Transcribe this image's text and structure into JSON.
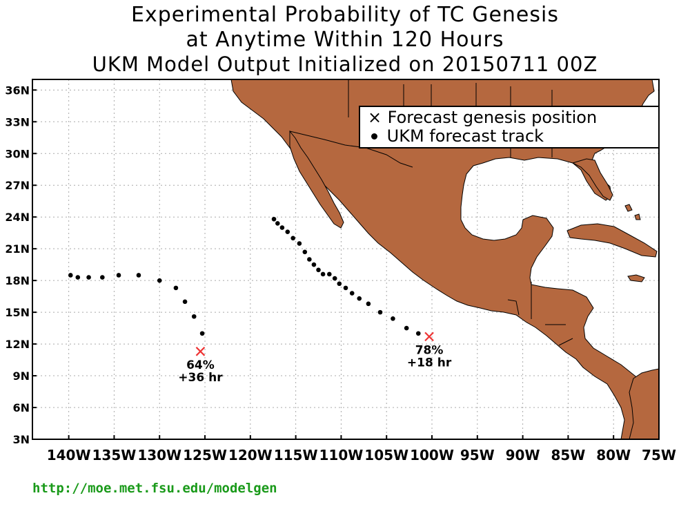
{
  "title": {
    "line1": "Experimental Probability of TC Genesis",
    "line2": "at Anytime Within 120 Hours",
    "line3": "UKM Model Output Initialized on 20150711 00Z"
  },
  "map": {
    "lon_range": [
      -144,
      -75
    ],
    "lat_range": [
      3,
      37
    ],
    "lat_ticks": [
      {
        "lat": 36,
        "label": "36N"
      },
      {
        "lat": 33,
        "label": "33N"
      },
      {
        "lat": 30,
        "label": "30N"
      },
      {
        "lat": 27,
        "label": "27N"
      },
      {
        "lat": 24,
        "label": "24N"
      },
      {
        "lat": 21,
        "label": "21N"
      },
      {
        "lat": 18,
        "label": "18N"
      },
      {
        "lat": 15,
        "label": "15N"
      },
      {
        "lat": 12,
        "label": "12N"
      },
      {
        "lat": 9,
        "label": "9N"
      },
      {
        "lat": 6,
        "label": "6N"
      },
      {
        "lat": 3,
        "label": "3N"
      }
    ],
    "lon_ticks": [
      {
        "lon": -140,
        "label": "140W"
      },
      {
        "lon": -135,
        "label": "135W"
      },
      {
        "lon": -130,
        "label": "130W"
      },
      {
        "lon": -125,
        "label": "125W"
      },
      {
        "lon": -120,
        "label": "120W"
      },
      {
        "lon": -115,
        "label": "115W"
      },
      {
        "lon": -110,
        "label": "110W"
      },
      {
        "lon": -105,
        "label": "105W"
      },
      {
        "lon": -100,
        "label": "100W"
      },
      {
        "lon": -95,
        "label": "95W"
      },
      {
        "lon": -90,
        "label": "90W"
      },
      {
        "lon": -85,
        "label": "85W"
      },
      {
        "lon": -80,
        "label": "80W"
      },
      {
        "lon": -75,
        "label": "75W"
      }
    ],
    "land_color": "#b5683f",
    "grid": true
  },
  "legend": {
    "genesis_symbol": "×",
    "genesis_label": "Forecast genesis position",
    "track_label": "UKM forecast track"
  },
  "systems": [
    {
      "genesis": {
        "lon": -125.5,
        "lat": 11.3
      },
      "probability": "64%",
      "lead": "+36 hr",
      "track": [
        [
          -125.3,
          13.0
        ],
        [
          -126.2,
          14.6
        ],
        [
          -127.2,
          16.0
        ],
        [
          -128.2,
          17.3
        ],
        [
          -130.0,
          18.0
        ],
        [
          -132.3,
          18.5
        ],
        [
          -134.5,
          18.5
        ],
        [
          -136.3,
          18.3
        ],
        [
          -137.8,
          18.3
        ],
        [
          -139.0,
          18.3
        ],
        [
          -139.8,
          18.5
        ]
      ]
    },
    {
      "genesis": {
        "lon": -100.3,
        "lat": 12.7
      },
      "probability": "78%",
      "lead": "+18 hr",
      "track": [
        [
          -101.5,
          13.0
        ],
        [
          -102.8,
          13.5
        ],
        [
          -104.3,
          14.4
        ],
        [
          -105.7,
          15.0
        ],
        [
          -107.0,
          15.8
        ],
        [
          -108.0,
          16.3
        ],
        [
          -108.8,
          16.8
        ],
        [
          -109.5,
          17.3
        ],
        [
          -110.2,
          17.7
        ],
        [
          -110.7,
          18.2
        ],
        [
          -111.3,
          18.6
        ],
        [
          -112.0,
          18.6
        ],
        [
          -112.5,
          19.0
        ],
        [
          -113.0,
          19.5
        ],
        [
          -113.5,
          20.0
        ],
        [
          -114.0,
          20.7
        ],
        [
          -114.6,
          21.5
        ],
        [
          -115.3,
          22.0
        ],
        [
          -115.9,
          22.6
        ],
        [
          -116.5,
          23.0
        ],
        [
          -117.0,
          23.4
        ],
        [
          -117.4,
          23.8
        ]
      ]
    }
  ],
  "footer": {
    "url": "http://moe.met.fsu.edu/modelgen"
  }
}
